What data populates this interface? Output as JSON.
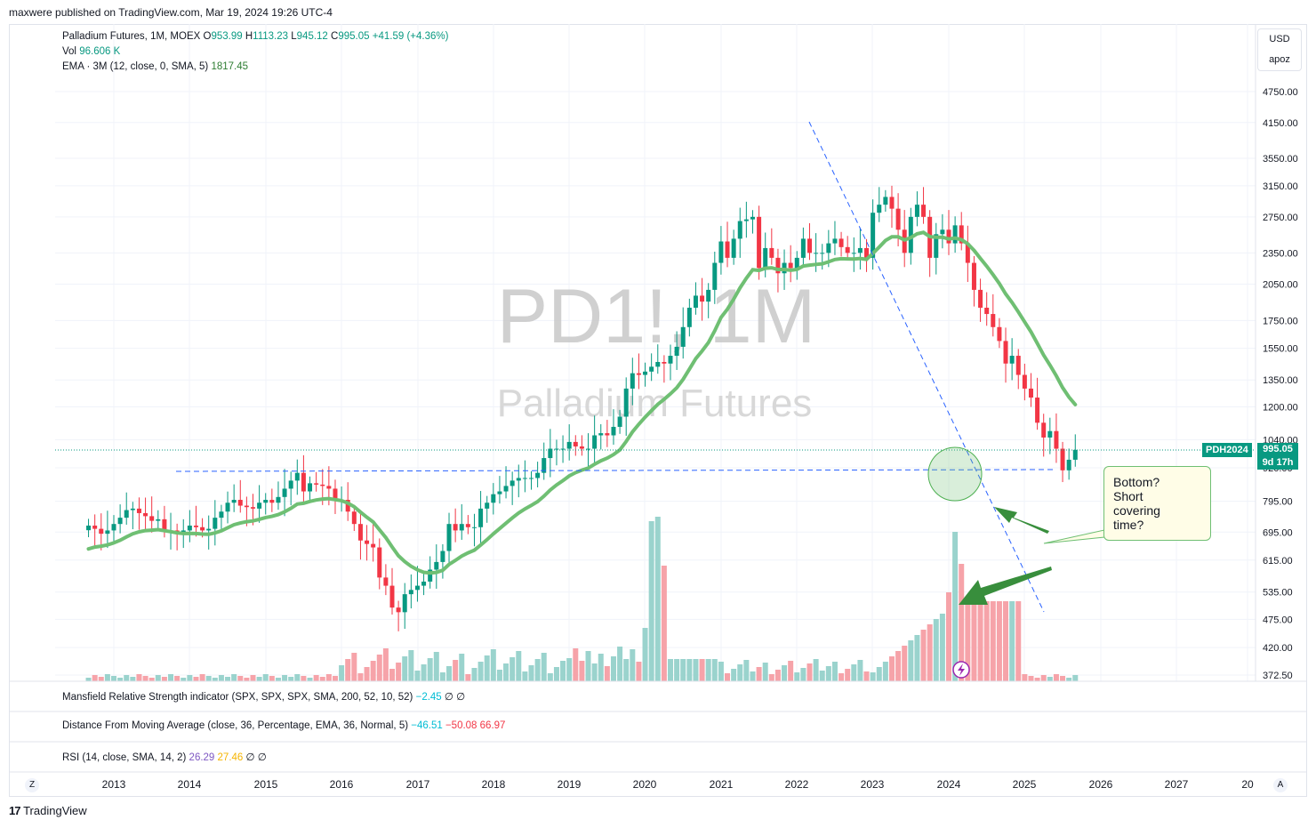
{
  "header": {
    "published": "maxwere published on TradingView.com, Mar 19, 2024 19:26 UTC-4"
  },
  "legend": {
    "symbol": "Palladium Futures, 1M, MOEX",
    "o_label": "O",
    "o": "953.99",
    "h_label": "H",
    "h": "1113.23",
    "l_label": "L",
    "l": "945.12",
    "c_label": "C",
    "c": "995.05",
    "change": "+41.59 (+4.36%)",
    "vol_label": "Vol",
    "vol": "96.606 K",
    "ema_label": "EMA · 3M (12, close, 0, SMA, 5)",
    "ema": "1817.45"
  },
  "currency_box": {
    "currency": "USD",
    "mode": "apoz"
  },
  "watermark": {
    "symbol": "PD1!, 1M",
    "name": "Palladium Futures"
  },
  "price_tag": {
    "symbol": "PDH2024",
    "price": "995.05",
    "countdown": "9d 17h"
  },
  "note": {
    "lines": [
      "Bottom?",
      "Short",
      "covering",
      "time?"
    ]
  },
  "indicators": {
    "mansfield": {
      "label": "Mansfield Relative Strength indicator (SPX, SPX, SPX, SMA, 200, 52, 10, 52)",
      "v1": "−2.45",
      "v2": "∅",
      "v3": "∅"
    },
    "distance": {
      "label": "Distance From Moving Average (close, 36, Percentage, EMA, 36, Normal, 5)",
      "v1": "−46.51",
      "v2": "−50.08",
      "v3": "66.97"
    },
    "rsi": {
      "label": "RSI (14, close, SMA, 14, 2)",
      "v1": "26.29",
      "v2": "27.46",
      "v3": "∅",
      "v4": "∅"
    }
  },
  "footer": {
    "logo": "TradingView",
    "zoom_btn": "Z",
    "auto_btn": "A"
  },
  "colors": {
    "up": "#089981",
    "down": "#f23645",
    "ema": "#6fbf73",
    "vol_up": "#9ad3cd",
    "vol_down": "#f6a3a9"
  },
  "chart_data": {
    "type": "candlestick",
    "x_ticks": [
      "2013",
      "2014",
      "2015",
      "2016",
      "2017",
      "2018",
      "2019",
      "2020",
      "2021",
      "2022",
      "2023",
      "2024",
      "2025",
      "2026",
      "2027",
      "20"
    ],
    "y_ticks": [
      "4750.00",
      "4150.00",
      "3550.00",
      "3150.00",
      "2750.00",
      "2350.00",
      "2050.00",
      "1750.00",
      "1550.00",
      "1350.00",
      "1200.00",
      "1040.00",
      "920.00",
      "795.00",
      "695.00",
      "615.00",
      "535.00",
      "475.00",
      "420.00",
      "372.50"
    ],
    "y_scale": "log",
    "close_series": {
      "start": "2012-09",
      "values": [
        715,
        705,
        690,
        700,
        720,
        740,
        765,
        770,
        755,
        745,
        730,
        735,
        700,
        700,
        690,
        700,
        715,
        710,
        700,
        705,
        740,
        760,
        790,
        800,
        780,
        775,
        770,
        790,
        800,
        790,
        810,
        840,
        870,
        900,
        830,
        860,
        855,
        850,
        840,
        800,
        800,
        760,
        720,
        670,
        660,
        650,
        570,
        550,
        500,
        490,
        530,
        540,
        550,
        560,
        590,
        610,
        640,
        720,
        700,
        720,
        710,
        710,
        770,
        790,
        820,
        830,
        850,
        870,
        880,
        880,
        880,
        900,
        960,
        1000,
        1000,
        1000,
        1030,
        1010,
        1000,
        1000,
        1060,
        1070,
        1060,
        1100,
        1150,
        1300,
        1390,
        1380,
        1400,
        1430,
        1460,
        1450,
        1500,
        1560,
        1700,
        1850,
        1950,
        1900,
        2000,
        2250,
        2470,
        2300,
        2500,
        2700,
        2720,
        2750,
        2200,
        2400,
        2300,
        2150,
        2250,
        2200,
        2300,
        2500,
        2350,
        2350,
        2350,
        2450,
        2500,
        2410,
        2350,
        2350,
        2400,
        2300,
        2800,
        2900,
        3000,
        2850,
        2600,
        2350,
        2750,
        2900,
        2750,
        2300,
        2550,
        2600,
        2450,
        2650,
        2450,
        2250,
        2000,
        1850,
        1800,
        1700,
        1600,
        1450,
        1500,
        1380,
        1300,
        1250,
        1120,
        1050,
        1080,
        1000,
        910,
        953,
        995
      ]
    },
    "ema_series": {
      "start": "2012-09",
      "end_label": "1817.45"
    },
    "support_level": 920,
    "volume_note": "volume histogram, spikes in 2020 and 2024"
  }
}
